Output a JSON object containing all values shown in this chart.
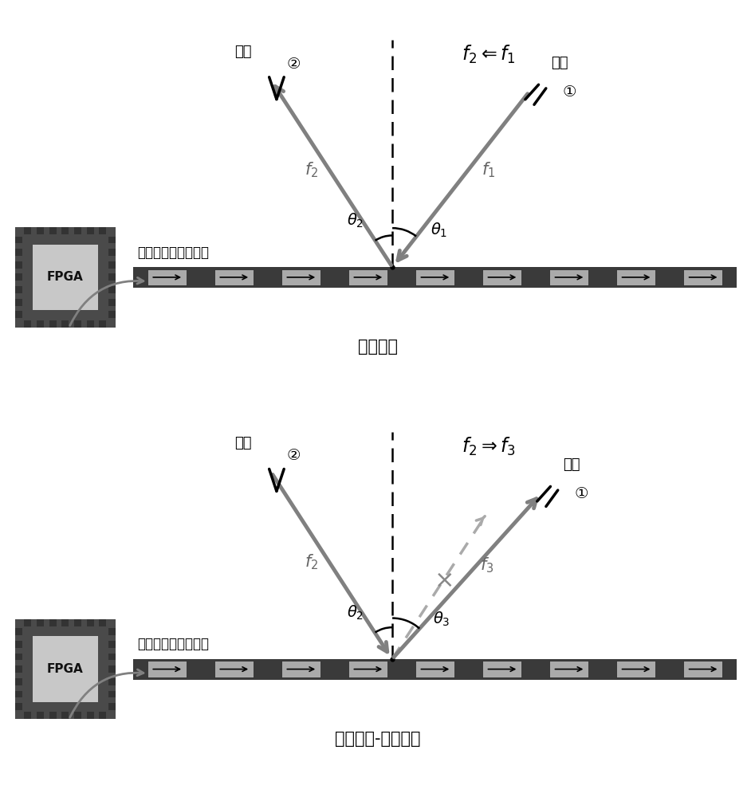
{
  "bg_color": "#ffffff",
  "mid_gray": "#666666",
  "arrow_gray": "#808080",
  "arrow_dark": "#555555",
  "surface_dark": "#3a3a3a",
  "cell_color": "#aaaaaa",
  "cell_edge": "#222222",
  "fpga_bg": "#5a5a5a",
  "fpga_bump": "#404040",
  "fpga_chip": "#c0c0c0",
  "dashed_color": "#aaaaaa",
  "title1": "前向反射",
  "title2": "时间反演-后向反射",
  "surface_label": "时空编码数字超表面",
  "port_label": "端口",
  "formula1": "$f_2 \\Leftarrow f_1$",
  "formula2": "$f_2 \\Rightarrow f_3$",
  "theta1_deg": 38,
  "theta2_deg": 33,
  "theta3_deg": 42
}
